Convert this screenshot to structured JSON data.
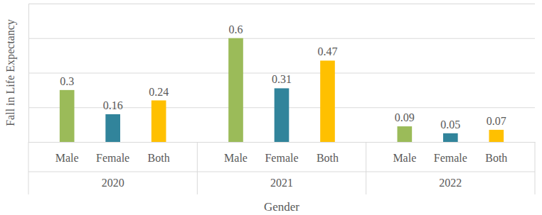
{
  "chart_data": {
    "type": "bar",
    "x_label": "Gender",
    "y_label": "Fall in Life Expectancy",
    "categories": [
      "2020",
      "2021",
      "2022"
    ],
    "series": [
      {
        "name": "Male",
        "color": "#9bbb59",
        "values": [
          0.3,
          0.6,
          0.09
        ]
      },
      {
        "name": "Female",
        "color": "#31849b",
        "values": [
          0.16,
          0.31,
          0.05
        ]
      },
      {
        "name": "Both",
        "color": "#ffc000",
        "values": [
          0.24,
          0.47,
          0.07
        ]
      }
    ],
    "ylim": [
      0,
      0.8
    ],
    "yticks": [
      0,
      0.2,
      0.4,
      0.6,
      0.8
    ],
    "grid": true,
    "data_labels": true,
    "tick_labels": "x"
  }
}
